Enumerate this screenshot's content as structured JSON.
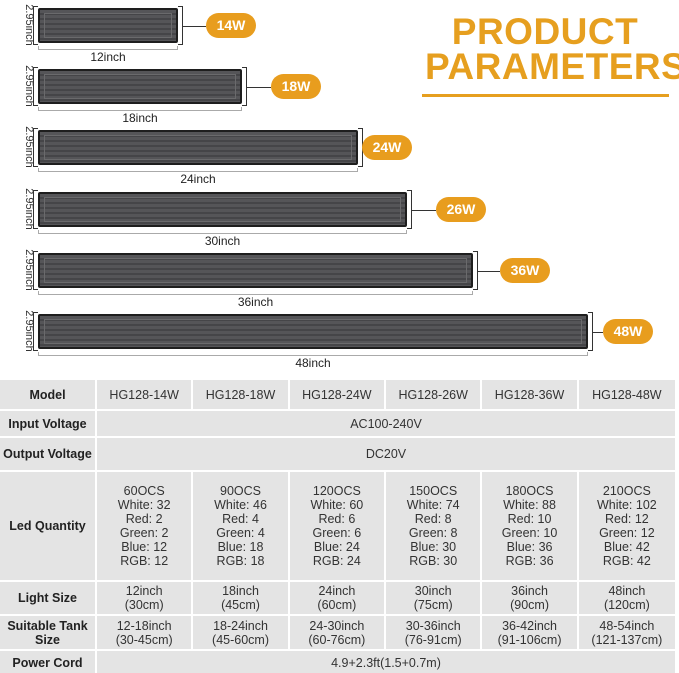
{
  "title": {
    "line1": "PRODUCT",
    "line2": "PARAMETERS"
  },
  "accent_color": "#e69f1f",
  "lights": [
    {
      "watt": "14W",
      "length": "12inch",
      "height": "2.95inch"
    },
    {
      "watt": "18W",
      "length": "18inch",
      "height": "2.95inch"
    },
    {
      "watt": "24W",
      "length": "24inch",
      "height": "2.95inch"
    },
    {
      "watt": "26W",
      "length": "30inch",
      "height": "2.95inch"
    },
    {
      "watt": "36W",
      "length": "36inch",
      "height": "2.95inch"
    },
    {
      "watt": "48W",
      "length": "48inch",
      "height": "2.95inch"
    }
  ],
  "table": {
    "model": {
      "label": "Model",
      "values": [
        "HG128-14W",
        "HG128-18W",
        "HG128-24W",
        "HG128-26W",
        "HG128-36W",
        "HG128-48W"
      ]
    },
    "input_voltage": {
      "label": "Input Voltage",
      "value": "AC100-240V"
    },
    "output_voltage": {
      "label": "Output Voltage",
      "value": "DC20V"
    },
    "led_quantity": {
      "label": "Led Quantity",
      "values": [
        [
          "60OCS",
          "White: 32",
          "Red: 2",
          "Green: 2",
          "Blue: 12",
          "RGB: 12"
        ],
        [
          "90OCS",
          "White: 46",
          "Red: 4",
          "Green: 4",
          "Blue: 18",
          "RGB: 18"
        ],
        [
          "120OCS",
          "White: 60",
          "Red: 6",
          "Green: 6",
          "Blue: 24",
          "RGB: 24"
        ],
        [
          "150OCS",
          "White: 74",
          "Red: 8",
          "Green: 8",
          "Blue: 30",
          "RGB: 30"
        ],
        [
          "180OCS",
          "White: 88",
          "Red: 10",
          "Green: 10",
          "Blue: 36",
          "RGB: 36"
        ],
        [
          "210OCS",
          "White: 102",
          "Red: 12",
          "Green: 12",
          "Blue: 42",
          "RGB: 42"
        ]
      ]
    },
    "light_size": {
      "label": "Light Size",
      "values": [
        [
          "12inch",
          "(30cm)"
        ],
        [
          "18inch",
          "(45cm)"
        ],
        [
          "24inch",
          "(60cm)"
        ],
        [
          "30inch",
          "(75cm)"
        ],
        [
          "36inch",
          "(90cm)"
        ],
        [
          "48inch",
          "(120cm)"
        ]
      ]
    },
    "tank_size": {
      "label": "Suitable Tank Size",
      "values": [
        [
          "12-18inch",
          "(30-45cm)"
        ],
        [
          "18-24inch",
          "(45-60cm)"
        ],
        [
          "24-30inch",
          "(60-76cm)"
        ],
        [
          "30-36inch",
          "(76-91cm)"
        ],
        [
          "36-42inch",
          "(91-106cm)"
        ],
        [
          "48-54inch",
          "(121-137cm)"
        ]
      ]
    },
    "power_cord": {
      "label": "Power Cord",
      "value": "4.9+2.3ft(1.5+0.7m)"
    }
  }
}
